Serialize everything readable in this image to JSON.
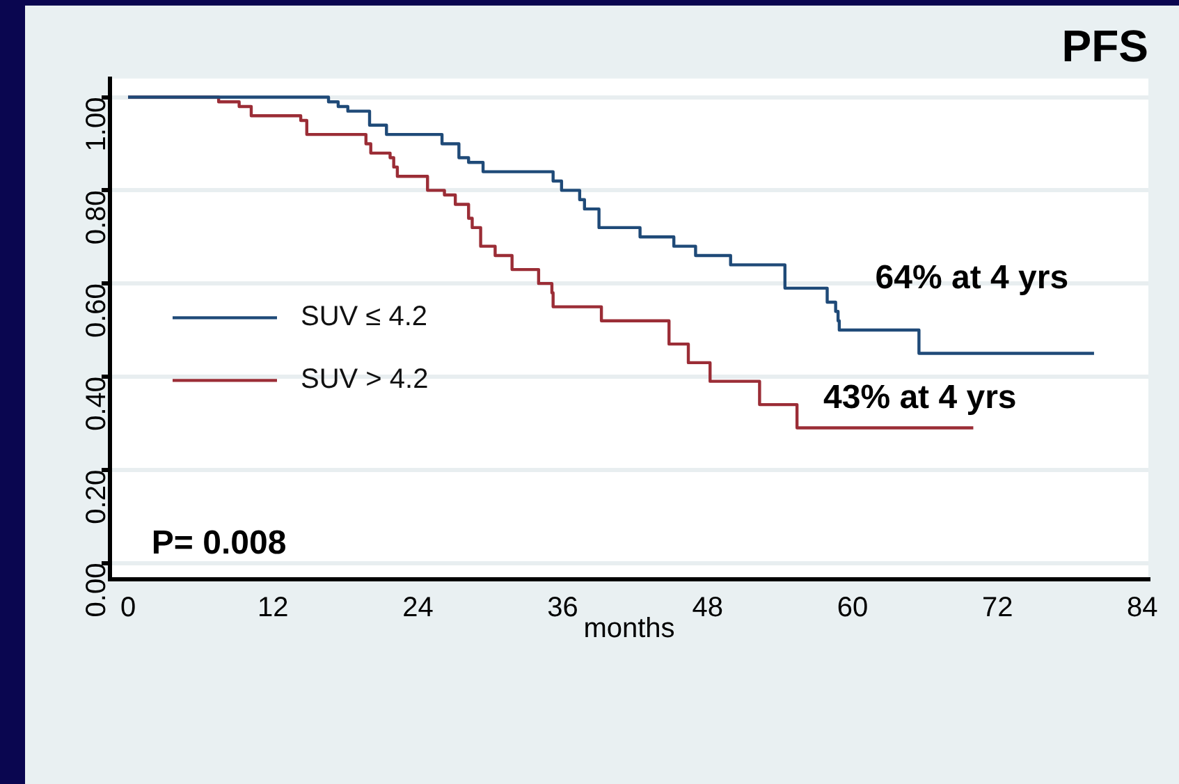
{
  "chart_data": {
    "type": "step",
    "title": "PFS",
    "xlabel": "months",
    "series": [
      {
        "name": "SUV ≤ 4.2",
        "color": "#1f4a78",
        "x": [
          0,
          16.6,
          17.4,
          18.2,
          20.0,
          21.4,
          26.0,
          27.4,
          28.2,
          29.4,
          35.2,
          35.4,
          35.9,
          37.4,
          37.8,
          39.0,
          42.4,
          45.2,
          47.0,
          49.9,
          54.4,
          57.9,
          58.6,
          58.8,
          58.9,
          65.5,
          80.0
        ],
        "values": [
          1,
          0.99,
          0.98,
          0.97,
          0.94,
          0.92,
          0.9,
          0.87,
          0.86,
          0.84,
          0.82,
          0.82,
          0.8,
          0.78,
          0.76,
          0.72,
          0.7,
          0.68,
          0.66,
          0.64,
          0.59,
          0.56,
          0.54,
          0.52,
          0.5,
          0.45,
          0.45
        ]
      },
      {
        "name": "SUV > 4.2",
        "color": "#9b2d36",
        "x": [
          0,
          7.5,
          9.2,
          10.2,
          14.3,
          14.8,
          19.7,
          20.1,
          21.7,
          22.0,
          22.3,
          24.8,
          26.2,
          27.1,
          28.2,
          28.5,
          29.2,
          30.4,
          31.8,
          34.0,
          35.1,
          35.2,
          39.2,
          44.8,
          46.4,
          48.2,
          52.3,
          55.4,
          70.0
        ],
        "values": [
          1,
          0.99,
          0.98,
          0.96,
          0.95,
          0.92,
          0.9,
          0.88,
          0.87,
          0.85,
          0.83,
          0.8,
          0.79,
          0.77,
          0.74,
          0.72,
          0.68,
          0.66,
          0.63,
          0.6,
          0.58,
          0.55,
          0.52,
          0.47,
          0.43,
          0.39,
          0.34,
          0.29,
          0.29
        ]
      }
    ],
    "xlim": [
      -1.5,
      84.5
    ],
    "xticks": [
      0,
      12,
      24,
      36,
      48,
      60,
      72,
      84
    ],
    "ylim": [
      -0.035,
      1.04
    ],
    "yticks": [
      {
        "value": 0,
        "label": "0.00"
      },
      {
        "value": 0.2,
        "label": "0.20"
      },
      {
        "value": 0.4,
        "label": "0.40"
      },
      {
        "value": 0.6,
        "label": "0.60"
      },
      {
        "value": 0.8,
        "label": "0.80"
      },
      {
        "value": 1,
        "label": "1.00"
      }
    ],
    "grid": "y",
    "legend": "center left",
    "marker": "none",
    "line_style": "solid",
    "annotations": [
      "64% at 4 yrs",
      "43% at 4 yrs",
      "P= 0.008"
    ]
  }
}
